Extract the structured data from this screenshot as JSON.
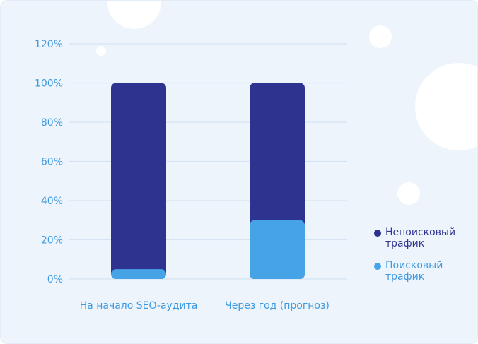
{
  "chart_data": {
    "type": "bar",
    "stacked": true,
    "categories": [
      "На начало SEO-аудита",
      "Через год (прогноз)"
    ],
    "series": [
      {
        "name": "Поисковый трафик",
        "values": [
          5,
          30
        ],
        "color": "#46a3e6"
      },
      {
        "name": "Непоисковый трафик",
        "values": [
          95,
          70
        ],
        "color": "#2e3390"
      }
    ],
    "yticks": [
      "0%",
      "20%",
      "40%",
      "60%",
      "80%",
      "100%",
      "120%"
    ],
    "ytick_values": [
      0,
      20,
      40,
      60,
      80,
      100,
      120
    ],
    "ylim": [
      0,
      120
    ],
    "grid": true,
    "legend_position": "right",
    "legend": [
      {
        "label": "Непоисковый трафик",
        "color": "#2e3390"
      },
      {
        "label": "Поисковый трафик",
        "color": "#46a3e6"
      }
    ],
    "title": "",
    "xlabel": "",
    "ylabel": ""
  },
  "colors": {
    "background": "#edf4fc",
    "axis_text": "#3d9ae0",
    "grid": "#d5e3f3"
  }
}
